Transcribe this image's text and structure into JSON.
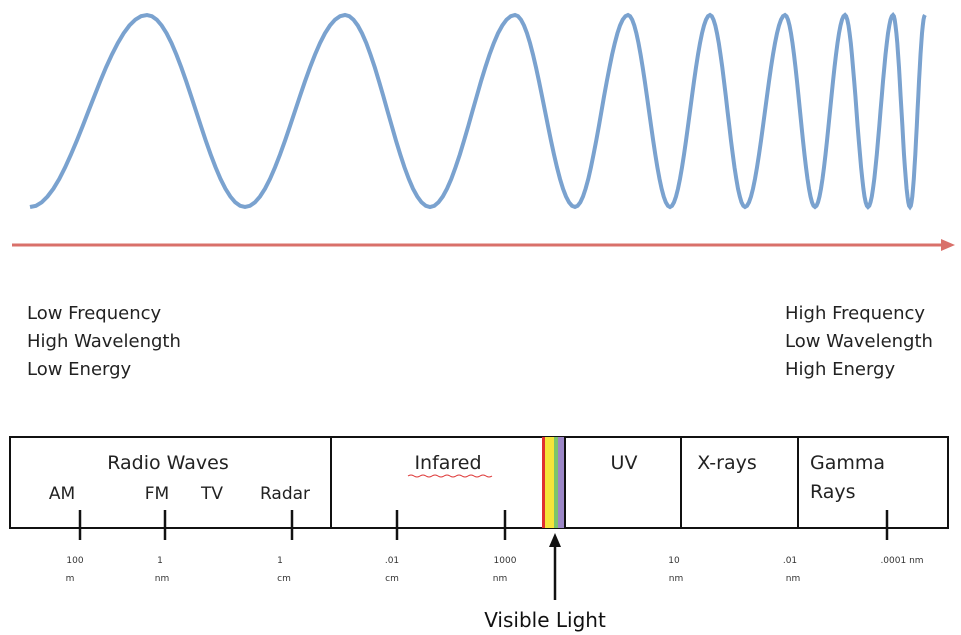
{
  "wave_labels": {
    "left": [
      "Low Frequency",
      "High Wavelength",
      "Low Energy"
    ],
    "right": [
      "High Frequency",
      "Low Wavelength",
      "High Energy"
    ]
  },
  "spectrum": {
    "radio": "Radio Waves",
    "radio_bands": [
      "AM",
      "FM",
      "TV",
      "Radar"
    ],
    "infrared": "Infared",
    "uv": "UV",
    "xrays": "X-rays",
    "gamma": [
      "Gamma",
      "Rays"
    ]
  },
  "scale_labels": [
    [
      "100",
      "m"
    ],
    [
      "1",
      "nm"
    ],
    [
      "1",
      "cm"
    ],
    [
      ".01",
      "cm"
    ],
    [
      "1000",
      "nm"
    ],
    [
      "10",
      "nm"
    ],
    [
      ".01",
      "nm"
    ],
    [
      ".0001 nm"
    ]
  ],
  "visible_label": "Visible Light"
}
